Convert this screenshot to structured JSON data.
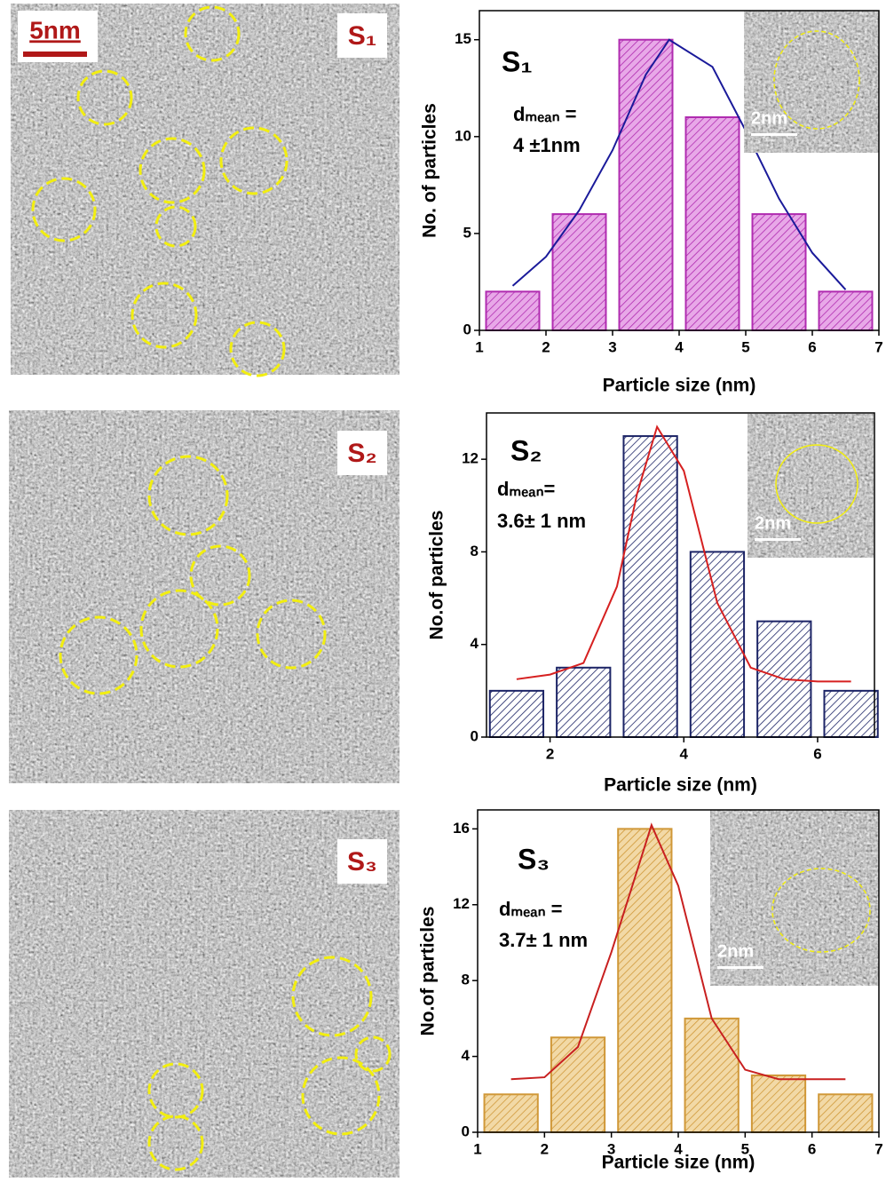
{
  "images": [
    {
      "label": "S₁",
      "scale_bar": "5nm"
    },
    {
      "label": "S₂"
    },
    {
      "label": "S₃"
    }
  ],
  "chart_data": [
    {
      "type": "bar",
      "x": [
        1.5,
        2.5,
        3.5,
        4.5,
        5.5,
        6.5
      ],
      "values": [
        2,
        6,
        15,
        11,
        6,
        2
      ],
      "bar_width": 0.8,
      "color": "#e8a8e8",
      "edge_color": "#b02cb0",
      "xlim": [
        1,
        7
      ],
      "xticks": [
        1,
        2,
        3,
        4,
        5,
        6,
        7
      ],
      "ylim": [
        0,
        16.5
      ],
      "yticks": [
        0,
        5,
        10,
        15
      ],
      "xlabel": "Particle size (nm)",
      "ylabel": "No. of particles",
      "annotations": [
        "S₁",
        "dₘₑₐₙ =",
        "4 ±1nm"
      ],
      "inset_scale": "2nm",
      "fit": {
        "color": "#1a1a9a",
        "x": [
          1.5,
          2,
          2.5,
          3,
          3.5,
          3.85,
          4.5,
          5,
          5.5,
          6,
          6.5
        ],
        "values": [
          2.3,
          3.8,
          6.2,
          9.3,
          13.2,
          15,
          13.6,
          10.3,
          6.8,
          4,
          2.1
        ]
      }
    },
    {
      "type": "bar",
      "x": [
        1.5,
        2.5,
        3.5,
        4.5,
        5.5,
        6.5
      ],
      "values": [
        2,
        3,
        13,
        8,
        5,
        2
      ],
      "bar_width": 0.8,
      "color": "#ffffff",
      "edge_color": "#1c2466",
      "xlim": [
        1.05,
        6.85
      ],
      "xticks": [
        2,
        4,
        6
      ],
      "ylim": [
        0,
        14
      ],
      "yticks": [
        0,
        4,
        8,
        12
      ],
      "xlabel": "Particle size (nm)",
      "ylabel": "No.of particles",
      "annotations": [
        "S₂",
        "dₘₑₐₙ=",
        "3.6± 1 nm"
      ],
      "inset_scale": "2nm",
      "fit": {
        "color": "#d62020",
        "x": [
          1.5,
          2,
          2.5,
          3,
          3.3,
          3.6,
          4,
          4.5,
          5,
          5.5,
          6,
          6.5
        ],
        "values": [
          2.5,
          2.7,
          3.2,
          6.5,
          10.5,
          13.4,
          11.5,
          5.8,
          3,
          2.5,
          2.4,
          2.4
        ]
      }
    },
    {
      "type": "bar",
      "x": [
        1.5,
        2.5,
        3.5,
        4.5,
        5.5,
        6.5
      ],
      "values": [
        2,
        5,
        16,
        6,
        3,
        2
      ],
      "bar_width": 0.8,
      "color": "#f2d9a6",
      "edge_color": "#d09838",
      "xlim": [
        1,
        7
      ],
      "xticks": [
        1,
        2,
        3,
        4,
        5,
        6,
        7
      ],
      "ylim": [
        0,
        17
      ],
      "yticks": [
        0,
        4,
        8,
        12,
        16
      ],
      "xlabel": "Particle size (nm)",
      "ylabel": "No.of particles",
      "annotations": [
        "S₃",
        "dₘₑₐₙ =",
        "3.7± 1 nm"
      ],
      "inset_scale": "2nm",
      "fit": {
        "color": "#c82020",
        "x": [
          1.5,
          2,
          2.5,
          3,
          3.6,
          4,
          4.5,
          5,
          5.5,
          6,
          6.5
        ],
        "values": [
          2.8,
          2.9,
          4.5,
          9.5,
          16.2,
          13,
          6,
          3.3,
          2.8,
          2.8,
          2.8
        ]
      }
    }
  ]
}
